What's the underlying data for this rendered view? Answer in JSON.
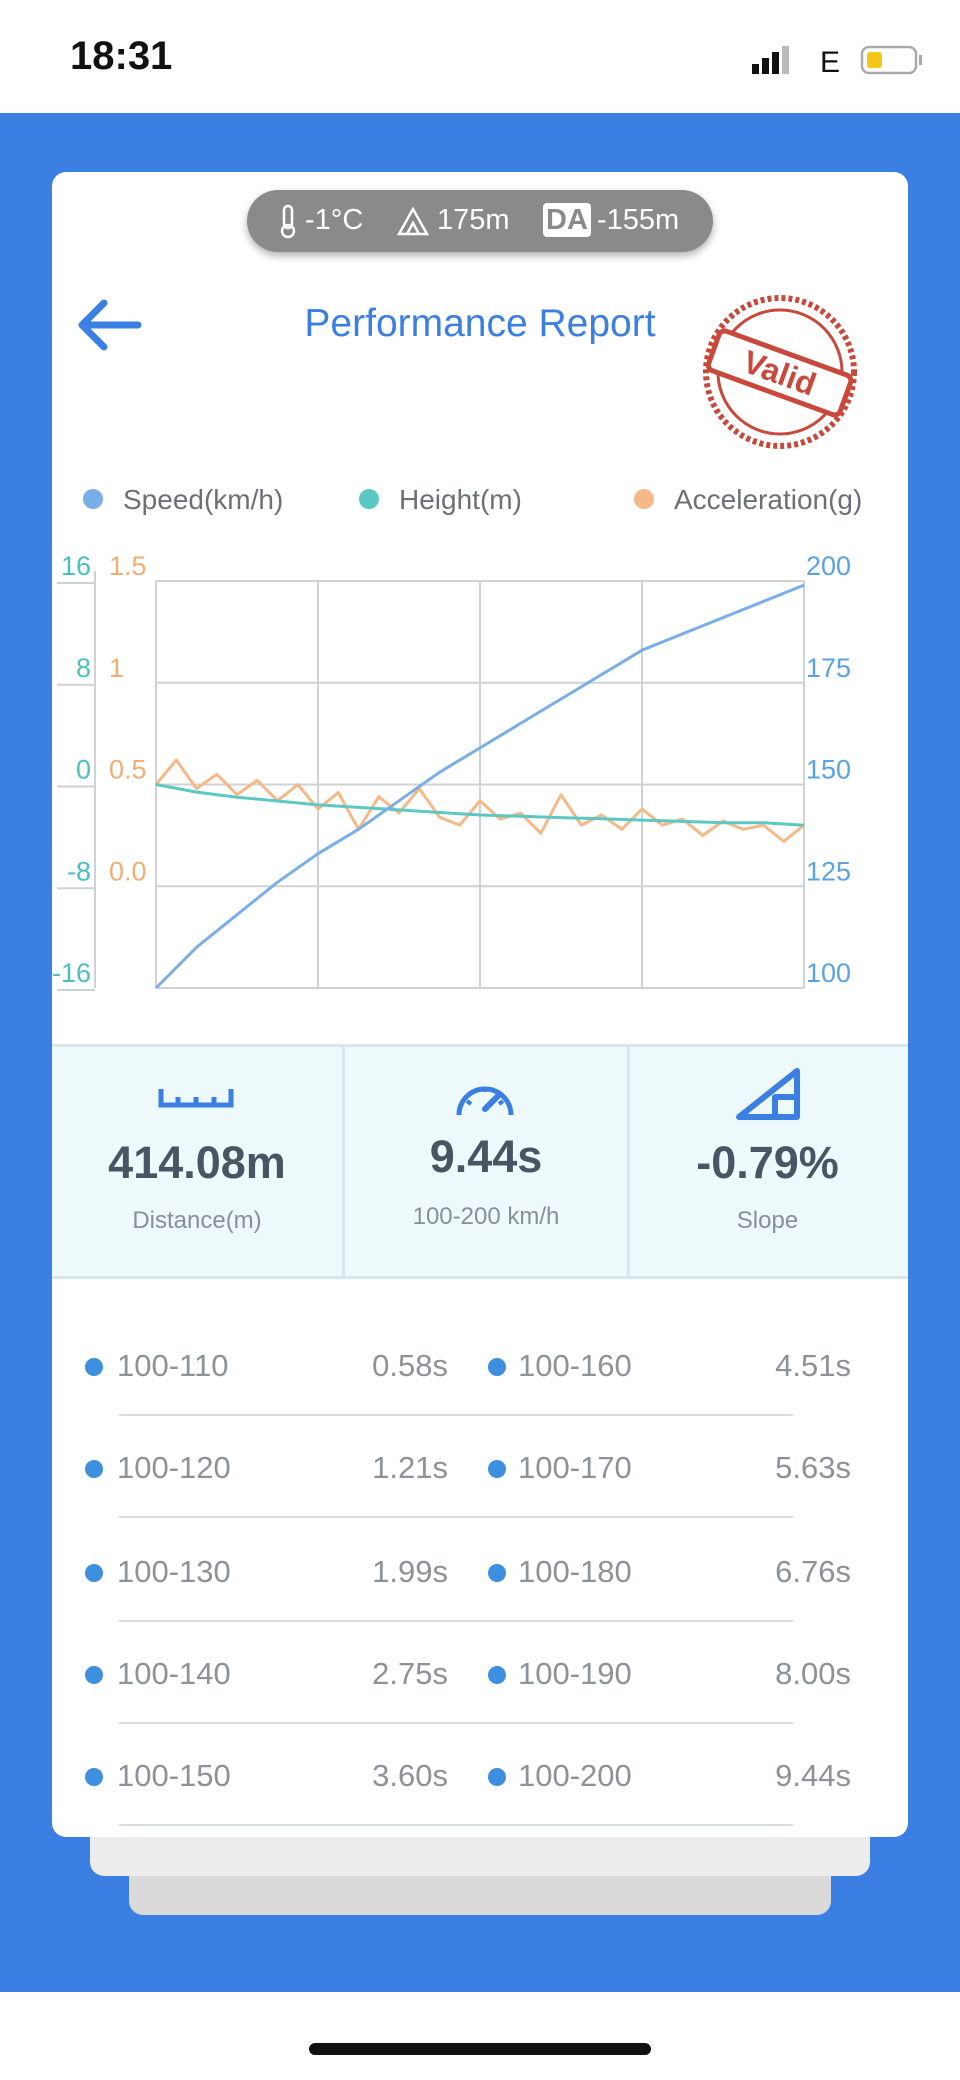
{
  "status_bar": {
    "time": "18:31",
    "network": "E"
  },
  "conditions": {
    "temperature": "-1°C",
    "altitude": "175m",
    "da_badge": "DA",
    "density_altitude": "-155m"
  },
  "header": {
    "title": "Performance Report",
    "stamp": "Valid"
  },
  "chart_data": {
    "type": "line",
    "grid": true,
    "axes": {
      "height": {
        "lim": [
          -16,
          16
        ],
        "ticks": [
          16,
          8,
          0,
          -8,
          -16
        ],
        "color": "#4cc0bd"
      },
      "acceleration": {
        "lim": [
          -0.5,
          1.5
        ],
        "ticks": [
          1.5,
          1,
          0.5,
          {
            "value": 0,
            "label": "0.0"
          }
        ],
        "color": "#f2ad74"
      },
      "speed": {
        "lim": [
          100,
          200
        ],
        "ticks": [
          200,
          175,
          150,
          125,
          100
        ],
        "color": "#5aa2e6"
      }
    },
    "series": [
      {
        "name": "Speed(km/h)",
        "color": "#7aaee8",
        "axis": "speed",
        "values": [
          100,
          110,
          118,
          126,
          133,
          139,
          146,
          153,
          159,
          165,
          171,
          177,
          183,
          187,
          191,
          195,
          199
        ]
      },
      {
        "name": "Height(m)",
        "color": "#5cc8c4",
        "axis": "height",
        "values": [
          0,
          -0.6,
          -1,
          -1.3,
          -1.6,
          -1.8,
          -2,
          -2.2,
          -2.4,
          -2.5,
          -2.6,
          -2.7,
          -2.8,
          -2.9,
          -3,
          -3,
          -3.2
        ]
      },
      {
        "name": "Acceleration(g)",
        "color": "#f5b887",
        "axis": "acceleration",
        "values": [
          0.5,
          0.62,
          0.48,
          0.55,
          0.45,
          0.52,
          0.42,
          0.5,
          0.38,
          0.46,
          0.28,
          0.44,
          0.36,
          0.48,
          0.34,
          0.3,
          0.42,
          0.33,
          0.36,
          0.26,
          0.45,
          0.3,
          0.35,
          0.28,
          0.38,
          0.3,
          0.33,
          0.25,
          0.32,
          0.28,
          0.3,
          0.22,
          0.3
        ]
      }
    ]
  },
  "summary": [
    {
      "value": "414.08m",
      "label": "Distance(m)"
    },
    {
      "value": "9.44s",
      "label": "100-200 km/h"
    },
    {
      "value": "-0.79%",
      "label": "Slope"
    }
  ],
  "splits": [
    {
      "range": "100-110",
      "time": "0.58s"
    },
    {
      "range": "100-120",
      "time": "1.21s"
    },
    {
      "range": "100-130",
      "time": "1.99s"
    },
    {
      "range": "100-140",
      "time": "2.75s"
    },
    {
      "range": "100-150",
      "time": "3.60s"
    },
    {
      "range": "100-160",
      "time": "4.51s"
    },
    {
      "range": "100-170",
      "time": "5.63s"
    },
    {
      "range": "100-180",
      "time": "6.76s"
    },
    {
      "range": "100-190",
      "time": "8.00s"
    },
    {
      "range": "100-200",
      "time": "9.44s"
    }
  ]
}
